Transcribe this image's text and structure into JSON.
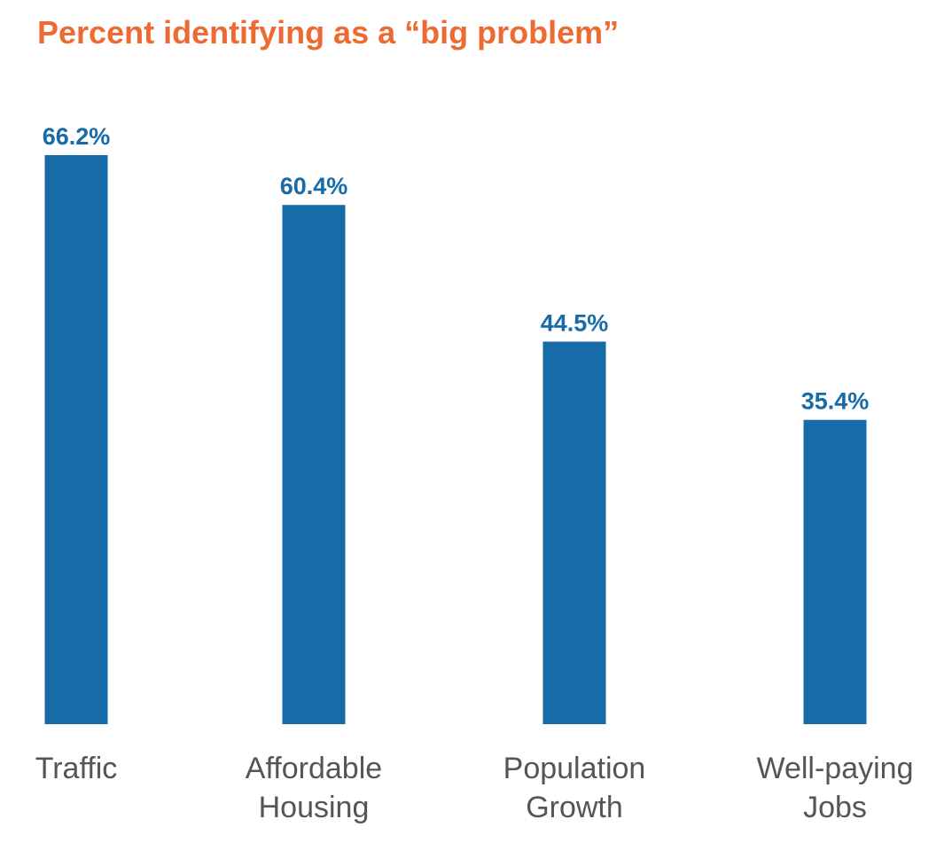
{
  "chart_data": {
    "type": "bar",
    "title": "Percent identifying as a “big problem”",
    "categories": [
      [
        "Traffic"
      ],
      [
        "Affordable",
        "Housing"
      ],
      [
        "Population",
        "Growth"
      ],
      [
        "Well-paying",
        "Jobs"
      ]
    ],
    "values": [
      66.2,
      60.4,
      44.5,
      35.4
    ],
    "value_labels": [
      "66.2%",
      "60.4%",
      "44.5%",
      "35.4%"
    ],
    "xlabel": "",
    "ylabel": "",
    "ylim": [
      0,
      66.2
    ],
    "grid": false,
    "legend": "none",
    "colors": {
      "bar": "#176BA9",
      "value_label": "#176BA9",
      "title": "#ED6B32",
      "category_label": "#555559"
    }
  }
}
